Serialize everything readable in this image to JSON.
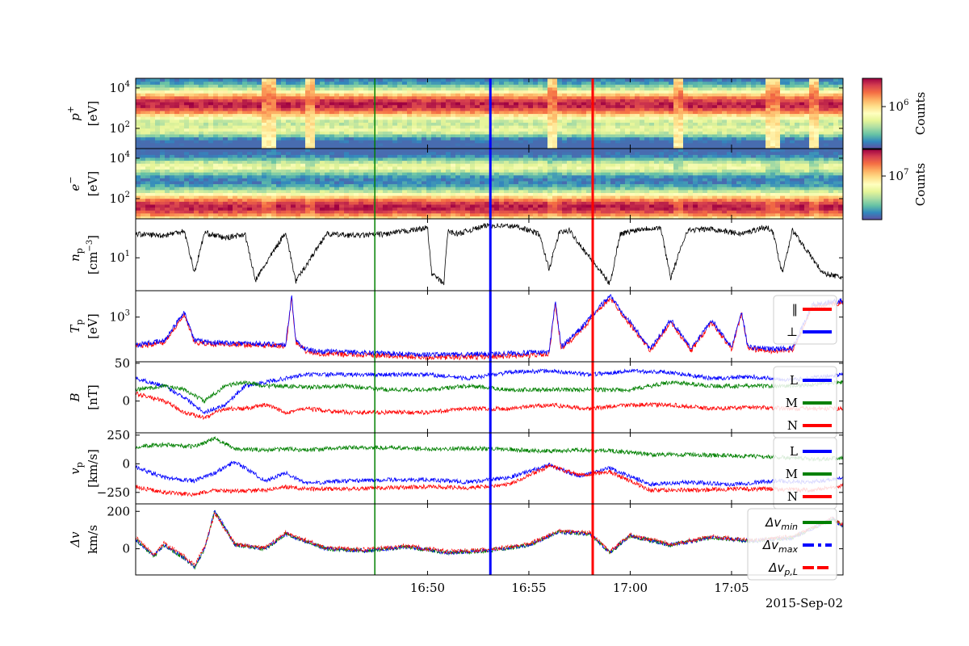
{
  "colors": {
    "L": "#0000ff",
    "M": "#008000",
    "N": "#ff0000",
    "par": "#ff0000",
    "perp": "#0000ff",
    "dvmin": "#008000",
    "dvmax": "#0000ff",
    "dvpl": "#ff0000",
    "np": "#000000",
    "vline_green": "#008000",
    "vline_blue": "#0000ff",
    "vline_red": "#ff0000",
    "colormap": "Spectral_r"
  },
  "time_axis": {
    "range_minutes": [
      -14.4,
      20.5
    ],
    "tick_values": [
      0,
      5,
      10,
      15
    ],
    "tick_labels": [
      "16:50",
      "16:55",
      "17:00",
      "17:05"
    ],
    "date_label": "2015-Sep-02"
  },
  "vertical_lines": [
    {
      "t": -2.6,
      "color": "green"
    },
    {
      "t": 3.1,
      "color": "blue"
    },
    {
      "t": 8.15,
      "color": "red"
    }
  ],
  "chart_data": [
    {
      "type": "heatmap",
      "panel": "proton_spectrogram",
      "ylabel_line1": "p",
      "ylabel_sup": "+",
      "ylabel_line2": "[eV]",
      "yscale": "log",
      "ylim": [
        10,
        30000
      ],
      "y_tick_values": [
        100,
        10000
      ],
      "y_tick_base": [
        "10",
        "10"
      ],
      "y_tick_exp": [
        "2",
        "4"
      ],
      "colorbar": {
        "label": "Counts",
        "tick_base": "10",
        "tick_exp": "6",
        "colormap": "Spectral_r"
      },
      "hot_band_log_center": 3.2,
      "gap_intervals": [
        [
          -8.3,
          -7.4
        ],
        [
          -6.0,
          -5.6
        ],
        [
          5.8,
          6.4
        ],
        [
          12.1,
          12.5
        ],
        [
          16.7,
          17.4
        ],
        [
          18.8,
          19.3
        ]
      ]
    },
    {
      "type": "heatmap",
      "panel": "electron_spectrogram",
      "ylabel_line1": "e",
      "ylabel_sup": "−",
      "ylabel_line2": "[eV]",
      "yscale": "log",
      "ylim": [
        10,
        30000
      ],
      "y_tick_values": [
        100,
        10000
      ],
      "y_tick_base": [
        "10",
        "10"
      ],
      "y_tick_exp": [
        "2",
        "4"
      ],
      "colorbar": {
        "label": "Counts",
        "tick_base": "10",
        "tick_exp": "7",
        "colormap": "Spectral_r"
      },
      "hot_band_log_center": 1.6,
      "gap_intervals": [
        [
          -8.3,
          -7.4
        ],
        [
          -6.0,
          -5.6
        ],
        [
          5.8,
          6.4
        ],
        [
          12.1,
          12.5
        ],
        [
          16.7,
          17.4
        ],
        [
          18.8,
          19.3
        ]
      ]
    },
    {
      "type": "line",
      "panel": "density",
      "ylabel_sym": "n",
      "ylabel_sub": "p",
      "ylabel_line2_pre": "[cm",
      "ylabel_line2_sup": "−3",
      "ylabel_line2_post": "]",
      "yscale": "log",
      "ylim": [
        2.2,
        60
      ],
      "y_tick_values": [
        10
      ],
      "y_tick_base": [
        "10"
      ],
      "y_tick_exp": [
        "1"
      ],
      "x": [
        -14.4,
        -13.0,
        -12.0,
        -11.5,
        -11.0,
        -10.0,
        -9.0,
        -8.5,
        -7.0,
        -6.5,
        -5.0,
        -3.5,
        -2.0,
        0.0,
        0.2,
        0.8,
        1.0,
        1.5,
        2.0,
        3.0,
        4.5,
        5.5,
        6.0,
        6.5,
        7.0,
        9.0,
        9.5,
        10.5,
        11.5,
        12.0,
        12.8,
        13.0,
        14.0,
        15.5,
        16.5,
        17.0,
        17.5,
        18.0,
        19.5,
        20.5
      ],
      "series": [
        {
          "values": [
            30,
            28,
            35,
            5,
            32,
            25,
            30,
            3.5,
            33,
            3.4,
            30,
            28,
            30,
            40,
            5,
            3.0,
            34,
            30,
            35,
            45,
            42,
            30,
            6,
            32,
            35,
            3.0,
            30,
            38,
            40,
            4,
            35,
            36,
            38,
            30,
            40,
            38,
            5,
            36,
            5,
            4
          ]
        }
      ]
    },
    {
      "type": "line",
      "panel": "temperature",
      "ylabel_sym": "T",
      "ylabel_sub": "p",
      "ylabel_line2": "[eV]",
      "yscale": "log",
      "ylim": [
        120,
        3500
      ],
      "y_tick_values": [
        1000
      ],
      "y_tick_base": [
        "10"
      ],
      "y_tick_exp": [
        "3"
      ],
      "x": [
        -14.4,
        -13.0,
        -12.0,
        -11.5,
        -10.5,
        -9.0,
        -7.0,
        -6.7,
        -6.5,
        -6.2,
        -6.0,
        -5.5,
        -4.0,
        -2.0,
        0.0,
        2.0,
        4.0,
        6.0,
        6.3,
        6.6,
        7.5,
        9.0,
        11.0,
        12.0,
        13.0,
        14.0,
        15.0,
        15.5,
        15.8,
        16.0,
        17.0,
        18.0,
        19.0,
        20.5
      ],
      "series": [
        {
          "name": "‖",
          "values": [
            250,
            300,
            1100,
            300,
            280,
            270,
            250,
            2500,
            300,
            230,
            200,
            180,
            170,
            160,
            150,
            150,
            160,
            170,
            2000,
            220,
            500,
            2500,
            200,
            800,
            200,
            800,
            220,
            1200,
            230,
            220,
            200,
            210,
            1600,
            2000
          ]
        },
        {
          "name": "⊥",
          "values": [
            270,
            320,
            1300,
            330,
            300,
            290,
            270,
            2800,
            330,
            250,
            220,
            200,
            190,
            180,
            170,
            170,
            180,
            190,
            2200,
            240,
            550,
            2800,
            220,
            900,
            220,
            900,
            240,
            1300,
            250,
            240,
            220,
            230,
            1800,
            2200
          ]
        }
      ]
    },
    {
      "type": "line",
      "panel": "magnetic_field",
      "ylabel_sym": "B",
      "ylabel_line2": "[nT]",
      "ylim": [
        -42,
        52
      ],
      "y_tick_values": [
        0,
        50
      ],
      "y_tick_labels": [
        "0",
        "50"
      ],
      "x": [
        -14.4,
        -13.0,
        -12.0,
        -11.0,
        -10.0,
        -9.0,
        -8.0,
        -7.0,
        -6.0,
        -4.0,
        -2.0,
        0.0,
        2.0,
        4.0,
        6.0,
        8.0,
        10.0,
        12.0,
        14.0,
        16.0,
        18.0,
        20.5
      ],
      "series": [
        {
          "name": "L",
          "values": [
            30,
            20,
            5,
            -15,
            -5,
            20,
            25,
            30,
            35,
            35,
            35,
            35,
            30,
            38,
            40,
            35,
            40,
            38,
            30,
            32,
            28,
            35
          ]
        },
        {
          "name": "M",
          "values": [
            15,
            20,
            15,
            0,
            20,
            25,
            20,
            20,
            18,
            20,
            15,
            15,
            20,
            15,
            15,
            15,
            15,
            25,
            20,
            20,
            20,
            25
          ]
        },
        {
          "name": "N",
          "values": [
            10,
            0,
            -15,
            -22,
            -10,
            -10,
            -5,
            -15,
            -10,
            -15,
            -15,
            -15,
            -10,
            -10,
            -5,
            -10,
            -5,
            -5,
            -10,
            -8,
            -10,
            -10
          ]
        }
      ]
    },
    {
      "type": "line",
      "panel": "velocity",
      "ylabel_sym": "v",
      "ylabel_sub": "p",
      "ylabel_line2": "[km/s]",
      "ylim": [
        -350,
        270
      ],
      "y_tick_values": [
        -250,
        0,
        250
      ],
      "y_tick_labels": [
        "−250",
        "0",
        "250"
      ],
      "x": [
        -14.4,
        -13.0,
        -11.5,
        -10.5,
        -9.5,
        -8.0,
        -7.0,
        -6.0,
        -4.0,
        -2.0,
        0.0,
        2.0,
        4.0,
        6.0,
        7.5,
        9.0,
        11.0,
        13.0,
        15.0,
        17.0,
        19.0,
        20.5
      ],
      "series": [
        {
          "name": "L",
          "values": [
            -30,
            -120,
            -150,
            -80,
            20,
            -150,
            -80,
            -170,
            -150,
            -140,
            -140,
            -160,
            -120,
            -10,
            -110,
            -40,
            -180,
            -160,
            -180,
            -150,
            -160,
            -120
          ]
        },
        {
          "name": "M",
          "values": [
            150,
            165,
            150,
            220,
            130,
            120,
            130,
            120,
            140,
            140,
            130,
            135,
            125,
            110,
            120,
            115,
            80,
            80,
            70,
            60,
            40,
            50
          ]
        },
        {
          "name": "N",
          "values": [
            -200,
            -250,
            -270,
            -230,
            -240,
            -230,
            -200,
            -220,
            -220,
            -210,
            -200,
            -210,
            -180,
            -20,
            -100,
            -70,
            -230,
            -230,
            -220,
            -220,
            -230,
            -190
          ]
        }
      ]
    },
    {
      "type": "line",
      "panel": "delta_v",
      "ylabel_line1": "Δv",
      "ylabel_line2": "km/s",
      "ylim": [
        -140,
        240
      ],
      "y_tick_values": [
        0,
        200
      ],
      "y_tick_labels": [
        "0",
        "200"
      ],
      "x": [
        -14.4,
        -13.5,
        -13.0,
        -12.0,
        -11.5,
        -11.0,
        -10.5,
        -9.5,
        -8.0,
        -7.0,
        -5.0,
        -3.0,
        -1.0,
        1.0,
        3.0,
        5.0,
        6.5,
        8.0,
        9.0,
        10.0,
        12.0,
        14.0,
        16.0,
        18.0,
        20.0,
        20.5
      ],
      "series": [
        {
          "name": "Δv_min",
          "values": [
            50,
            -40,
            20,
            -50,
            -100,
            0,
            200,
            20,
            0,
            80,
            0,
            -10,
            10,
            -20,
            -10,
            20,
            90,
            80,
            -20,
            70,
            20,
            60,
            40,
            60,
            160,
            120
          ]
        },
        {
          "name": "Δv_max",
          "values": [
            50,
            -40,
            20,
            -50,
            -100,
            0,
            205,
            20,
            0,
            80,
            0,
            -10,
            10,
            -20,
            -10,
            20,
            90,
            80,
            -20,
            70,
            20,
            60,
            40,
            60,
            160,
            120
          ]
        },
        {
          "name": "Δv_p,L",
          "values": [
            60,
            -30,
            30,
            -40,
            -90,
            10,
            190,
            25,
            5,
            85,
            5,
            -5,
            15,
            -15,
            -5,
            25,
            95,
            85,
            -15,
            75,
            25,
            65,
            45,
            65,
            165,
            125
          ]
        }
      ]
    }
  ]
}
